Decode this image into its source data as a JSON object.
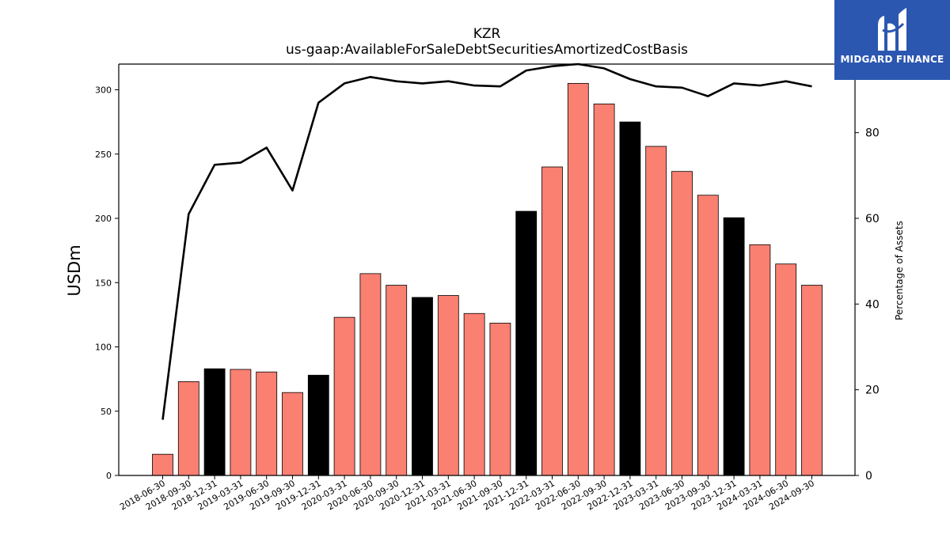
{
  "brand": {
    "name": "MIDGARD FINANCE",
    "logo_icon": "midgard-m-icon",
    "background": "#2b57b0"
  },
  "chart_data": {
    "type": "bar",
    "title": "KZR",
    "subtitle": "us-gaap:AvailableForSaleDebtSecuritiesAmortizedCostBasis",
    "ylabel": "USDm",
    "y2label": "Percentage of Assets",
    "ylim": [
      0,
      320
    ],
    "y2lim": [
      0,
      96
    ],
    "yticks": [
      0,
      50,
      100,
      150,
      200,
      250,
      300
    ],
    "y2ticks": [
      0,
      20,
      40,
      60,
      80
    ],
    "grid": false,
    "categories": [
      "2018-06-30",
      "2018-09-30",
      "2018-12-31",
      "2019-03-31",
      "2019-06-30",
      "2019-09-30",
      "2019-12-31",
      "2020-03-31",
      "2020-06-30",
      "2020-09-30",
      "2020-12-31",
      "2021-03-31",
      "2021-06-30",
      "2021-09-30",
      "2021-12-31",
      "2022-03-31",
      "2022-06-30",
      "2022-09-30",
      "2022-12-31",
      "2023-03-31",
      "2023-06-30",
      "2023-09-30",
      "2023-12-31",
      "2024-03-31",
      "2024-06-30",
      "2024-09-30"
    ],
    "series": [
      {
        "type": "bar",
        "axis": "left",
        "values": [
          16.5,
          73,
          83,
          82.5,
          80.5,
          64.5,
          78,
          123,
          157,
          148,
          138.5,
          140,
          126,
          118.5,
          205.5,
          240,
          305,
          289,
          275,
          256,
          236.5,
          218,
          200.5,
          179.5,
          164.5,
          148
        ],
        "colors": [
          "#fa8072",
          "#fa8072",
          "#000000",
          "#fa8072",
          "#fa8072",
          "#fa8072",
          "#000000",
          "#fa8072",
          "#fa8072",
          "#fa8072",
          "#000000",
          "#fa8072",
          "#fa8072",
          "#fa8072",
          "#000000",
          "#fa8072",
          "#fa8072",
          "#fa8072",
          "#000000",
          "#fa8072",
          "#fa8072",
          "#fa8072",
          "#000000",
          "#fa8072",
          "#fa8072",
          "#fa8072"
        ]
      },
      {
        "type": "line",
        "axis": "right",
        "color": "#000000",
        "values": [
          13,
          61,
          72.5,
          73,
          76.5,
          66.5,
          87,
          91.5,
          93,
          92,
          91.5,
          92,
          91,
          90.8,
          94.5,
          95.5,
          96,
          95,
          92.5,
          90.8,
          90.5,
          88.5,
          91.5,
          91,
          92,
          90.8
        ]
      }
    ]
  }
}
